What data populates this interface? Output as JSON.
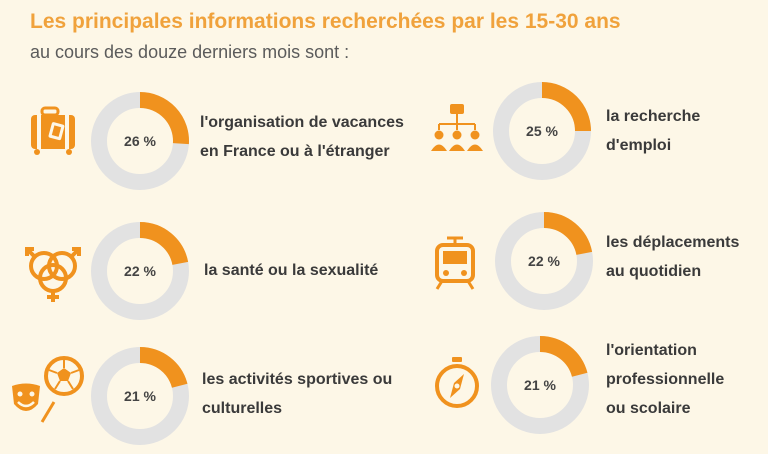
{
  "header": {
    "title": "Les principales informations recherchées par les 15-30 ans",
    "subtitle": "au cours des douze derniers mois sont :"
  },
  "colors": {
    "accent": "#f0921e",
    "ring": "#e2e2e2",
    "icon": "#f0921e"
  },
  "chart_data": {
    "type": "pie",
    "title": "Les principales informations recherchées par les 15-30 ans",
    "subtitle": "au cours des douze derniers mois sont :",
    "unit": "%",
    "items": [
      {
        "value": 26,
        "pct_label": "26 %",
        "label_lines": [
          "l'organisation de vacances",
          "en France ou à l'étranger"
        ],
        "icon": "suitcase-icon"
      },
      {
        "value": 25,
        "pct_label": "25 %",
        "label_lines": [
          "la recherche",
          "d'emploi"
        ],
        "icon": "org-chart-icon"
      },
      {
        "value": 22,
        "pct_label": "22 %",
        "label_lines": [
          "la santé ou la sexualité"
        ],
        "icon": "gender-symbols-icon"
      },
      {
        "value": 22,
        "pct_label": "22 %",
        "label_lines": [
          "les déplacements",
          "au quotidien"
        ],
        "icon": "tram-icon"
      },
      {
        "value": 21,
        "pct_label": "21 %",
        "label_lines": [
          "les activités sportives ou",
          "culturelles"
        ],
        "icon": "sport-culture-icon"
      },
      {
        "value": 21,
        "pct_label": "21 %",
        "label_lines": [
          "l'orientation",
          "professionnelle",
          "ou scolaire"
        ],
        "icon": "compass-icon"
      }
    ]
  }
}
